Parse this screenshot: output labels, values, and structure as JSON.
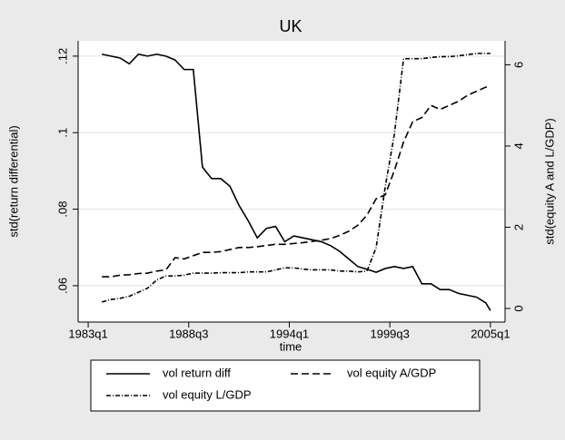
{
  "chart_data": {
    "type": "line",
    "title": "UK",
    "xlabel": "time",
    "ylabel": "std(return differential)",
    "y2label": "std(equity A and L/GDP)",
    "x": [
      1983.75,
      1984.25,
      1984.75,
      1985.25,
      1985.75,
      1986.25,
      1986.75,
      1987.25,
      1987.75,
      1988.25,
      1988.75,
      1989.25,
      1989.75,
      1990.25,
      1990.75,
      1991.25,
      1991.75,
      1992.25,
      1992.75,
      1993.25,
      1993.75,
      1994.25,
      1994.75,
      1995.25,
      1995.75,
      1996.25,
      1996.75,
      1997.25,
      1997.75,
      1998.25,
      1998.75,
      1999.25,
      1999.75,
      2000.25,
      2000.75,
      2001.25,
      2001.75,
      2002.25,
      2002.75,
      2003.25,
      2003.75,
      2004.25,
      2004.75,
      2005.0
    ],
    "xlim": [
      1982.45,
      2005.8
    ],
    "xticks": [
      {
        "value": 1983,
        "label": "1983q1"
      },
      {
        "value": 1988.5,
        "label": "1988q3"
      },
      {
        "value": 1994,
        "label": "1994q1"
      },
      {
        "value": 1999.5,
        "label": "1999q3"
      },
      {
        "value": 2005,
        "label": "2005q1"
      }
    ],
    "ylim": [
      0.0505,
      0.124
    ],
    "yticks": [
      {
        "value": 0.06,
        "label": ".06"
      },
      {
        "value": 0.08,
        "label": ".08"
      },
      {
        "value": 0.1,
        "label": ".1"
      },
      {
        "value": 0.12,
        "label": ".12"
      }
    ],
    "y2lim": [
      -0.335,
      6.59
    ],
    "y2ticks": [
      0,
      2,
      4,
      6
    ],
    "grid": true,
    "series": [
      {
        "name": "vol return diff",
        "color": "#000000",
        "linestyle": "solid",
        "values": [
          0.1205,
          0.12,
          0.1195,
          0.118,
          0.1205,
          0.12,
          0.1205,
          0.12,
          0.119,
          0.1165,
          0.1165,
          0.091,
          0.088,
          0.088,
          0.086,
          0.081,
          0.077,
          0.0725,
          0.075,
          0.0755,
          0.0715,
          0.073,
          0.0725,
          0.072,
          0.0715,
          0.0705,
          0.069,
          0.067,
          0.065,
          0.0643,
          0.0635,
          0.0645,
          0.065,
          0.0645,
          0.065,
          0.0605,
          0.0605,
          0.059,
          0.059,
          0.058,
          0.0575,
          0.057,
          0.0555,
          0.0535
        ]
      },
      {
        "name": "vol equity A/GDP",
        "color": "#000000",
        "linestyle": "dash",
        "axis": "y2",
        "values": [
          0.78,
          0.78,
          0.82,
          0.83,
          0.86,
          0.87,
          0.92,
          0.95,
          1.25,
          1.22,
          1.3,
          1.38,
          1.38,
          1.4,
          1.45,
          1.5,
          1.5,
          1.52,
          1.55,
          1.58,
          1.58,
          1.6,
          1.62,
          1.65,
          1.68,
          1.72,
          1.8,
          1.9,
          2.05,
          2.3,
          2.7,
          2.8,
          3.4,
          4.1,
          4.6,
          4.7,
          5.0,
          4.9,
          5.0,
          5.1,
          5.25,
          5.35,
          5.45,
          5.45
        ]
      },
      {
        "name": "vol equity L/GDP",
        "color": "#000000",
        "linestyle": "dashdot",
        "axis": "y2",
        "values": [
          0.16,
          0.22,
          0.25,
          0.3,
          0.4,
          0.5,
          0.7,
          0.8,
          0.8,
          0.82,
          0.87,
          0.87,
          0.87,
          0.88,
          0.88,
          0.88,
          0.9,
          0.9,
          0.9,
          0.95,
          1.0,
          1.0,
          0.97,
          0.95,
          0.95,
          0.95,
          0.92,
          0.92,
          0.9,
          0.92,
          1.5,
          3.0,
          4.3,
          6.15,
          6.15,
          6.15,
          6.18,
          6.2,
          6.2,
          6.22,
          6.25,
          6.28,
          6.28,
          6.28
        ]
      }
    ]
  }
}
